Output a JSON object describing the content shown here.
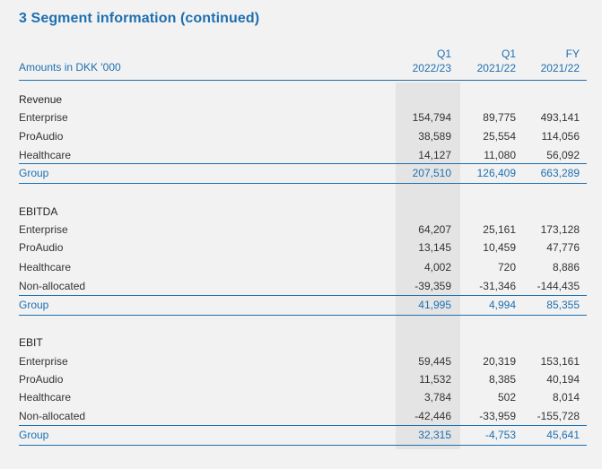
{
  "title": "3 Segment information (continued)",
  "header": {
    "units": "Amounts in DKK '000",
    "columns": [
      {
        "line1": "Q1",
        "line2": "2022/23"
      },
      {
        "line1": "Q1",
        "line2": "2021/22"
      },
      {
        "line1": "FY",
        "line2": "2021/22"
      }
    ]
  },
  "revenue": {
    "heading": "Revenue",
    "rows": [
      {
        "label": "Enterprise",
        "v": [
          "154,794",
          "89,775",
          "493,141"
        ]
      },
      {
        "label": "ProAudio",
        "v": [
          "38,589",
          "25,554",
          "114,056"
        ]
      },
      {
        "label": "Healthcare",
        "v": [
          "14,127",
          "11,080",
          "56,092"
        ]
      }
    ],
    "group": {
      "label": "Group",
      "v": [
        "207,510",
        "126,409",
        "663,289"
      ]
    }
  },
  "ebitda": {
    "heading": "EBITDA",
    "rows": [
      {
        "label": "Enterprise",
        "v": [
          "64,207",
          "25,161",
          "173,128"
        ]
      },
      {
        "label": "ProAudio",
        "v": [
          "13,145",
          "10,459",
          "47,776"
        ]
      },
      {
        "label": "Healthcare",
        "v": [
          "4,002",
          "720",
          "8,886"
        ]
      },
      {
        "label": "Non-allocated",
        "v": [
          "-39,359",
          "-31,346",
          "-144,435"
        ]
      }
    ],
    "group": {
      "label": "Group",
      "v": [
        "41,995",
        "4,994",
        "85,355"
      ]
    }
  },
  "ebit": {
    "heading": "EBIT",
    "rows": [
      {
        "label": "Enterprise",
        "v": [
          "59,445",
          "20,319",
          "153,161"
        ]
      },
      {
        "label": "ProAudio",
        "v": [
          "11,532",
          "8,385",
          "40,194"
        ]
      },
      {
        "label": "Healthcare",
        "v": [
          "3,784",
          "502",
          "8,014"
        ]
      },
      {
        "label": "Non-allocated",
        "v": [
          "-42,446",
          "-33,959",
          "-155,728"
        ]
      }
    ],
    "group": {
      "label": "Group",
      "v": [
        "32,315",
        "-4,753",
        "45,641"
      ]
    }
  }
}
